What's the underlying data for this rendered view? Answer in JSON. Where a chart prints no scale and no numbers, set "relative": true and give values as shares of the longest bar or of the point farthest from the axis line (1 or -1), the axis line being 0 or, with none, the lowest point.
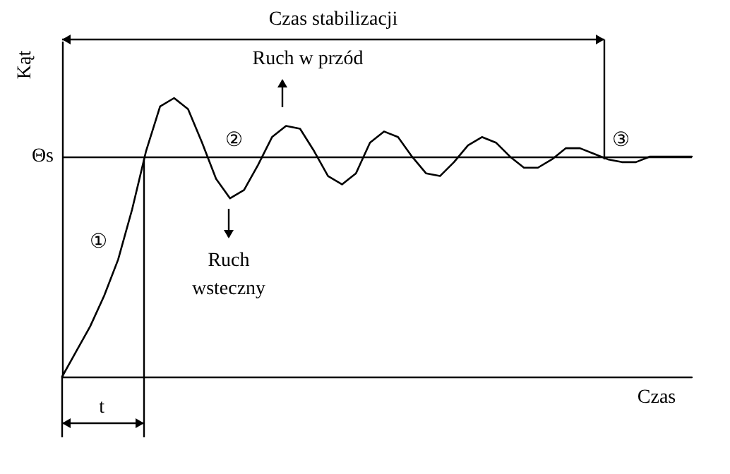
{
  "chart_data": {
    "type": "line",
    "xlabel": "Czas",
    "ylabel": "Kąt",
    "relative": true,
    "marker": "none",
    "line_style": "solid",
    "categories": [
      null,
      null,
      null,
      null,
      null,
      null,
      null,
      null,
      null,
      null,
      null,
      null,
      null,
      null,
      null,
      null,
      null,
      null,
      null,
      null,
      null,
      null,
      null,
      null,
      null,
      null,
      null,
      null,
      null,
      null,
      null,
      null,
      null,
      null,
      null,
      null,
      null,
      null,
      null,
      null,
      null,
      null,
      null,
      null,
      null,
      null
    ],
    "series": [
      {
        "color": "#000000",
        "values": [
          0,
          0.09,
          0.18,
          0.29,
          0.42,
          0.6,
          0.81,
          0.97,
          1,
          0.96,
          0.84,
          0.71,
          0.64,
          0.67,
          0.76,
          0.86,
          0.9,
          0.89,
          0.81,
          0.72,
          0.69,
          0.73,
          0.84,
          0.88,
          0.86,
          0.79,
          0.73,
          0.72,
          0.77,
          0.83,
          0.86,
          0.84,
          0.79,
          0.75,
          0.75,
          0.78,
          0.82,
          0.82,
          0.8,
          0.78,
          0.77,
          0.77,
          0.79,
          0.79,
          0.79,
          0.79
        ]
      }
    ],
    "ref_lines": [
      {
        "axis": "y",
        "value": 0.79,
        "label": "Θs"
      }
    ],
    "annotations": [
      "Czas stabilizacji",
      "Ruch w przód",
      "Ruch wsteczny",
      "①",
      "②",
      "③",
      "t"
    ]
  }
}
